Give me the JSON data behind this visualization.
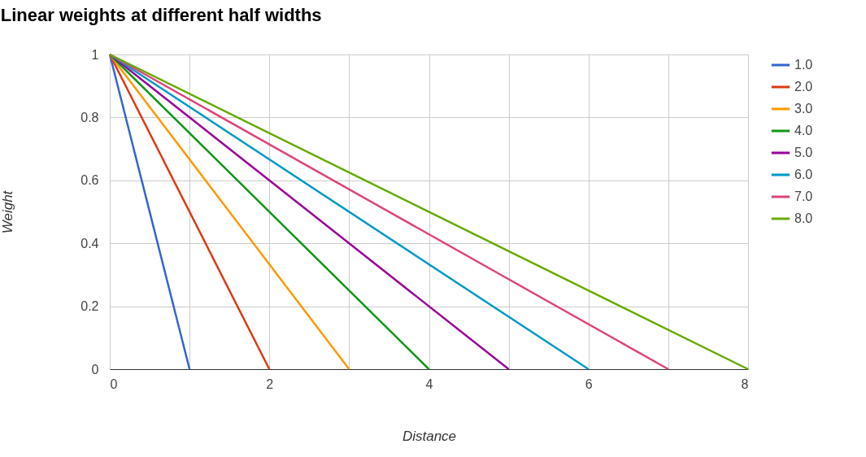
{
  "chart_data": {
    "type": "line",
    "title": "Linear weights at different half widths",
    "xlabel": "Distance",
    "ylabel": "Weight",
    "xlim": [
      0,
      8
    ],
    "xticks": [
      0,
      {
        "value": 1,
        "label": null
      },
      2,
      {
        "value": 3,
        "label": null
      },
      4,
      {
        "value": 5,
        "label": null
      },
      6,
      {
        "value": 7,
        "label": null
      },
      8
    ],
    "ylim": [
      0,
      1
    ],
    "yticks": [
      0,
      0.2,
      0.4,
      0.6,
      0.8,
      1
    ],
    "grid": true,
    "legend": "right",
    "line_style": "solid",
    "series": [
      {
        "name": "1.0",
        "color": "#3366cc",
        "x": [
          0,
          1
        ],
        "values": [
          1,
          0
        ]
      },
      {
        "name": "2.0",
        "color": "#dc3912",
        "x": [
          0,
          2
        ],
        "values": [
          1,
          0
        ]
      },
      {
        "name": "3.0",
        "color": "#ff9900",
        "x": [
          0,
          3
        ],
        "values": [
          1,
          0
        ]
      },
      {
        "name": "4.0",
        "color": "#109618",
        "x": [
          0,
          4
        ],
        "values": [
          1,
          0
        ]
      },
      {
        "name": "5.0",
        "color": "#990099",
        "x": [
          0,
          5
        ],
        "values": [
          1,
          0
        ]
      },
      {
        "name": "6.0",
        "color": "#0099c6",
        "x": [
          0,
          6
        ],
        "values": [
          1,
          0
        ]
      },
      {
        "name": "7.0",
        "color": "#dd4477",
        "x": [
          0,
          7
        ],
        "values": [
          1,
          0
        ]
      },
      {
        "name": "8.0",
        "color": "#66aa00",
        "x": [
          0,
          8
        ],
        "values": [
          1,
          0
        ]
      }
    ]
  }
}
